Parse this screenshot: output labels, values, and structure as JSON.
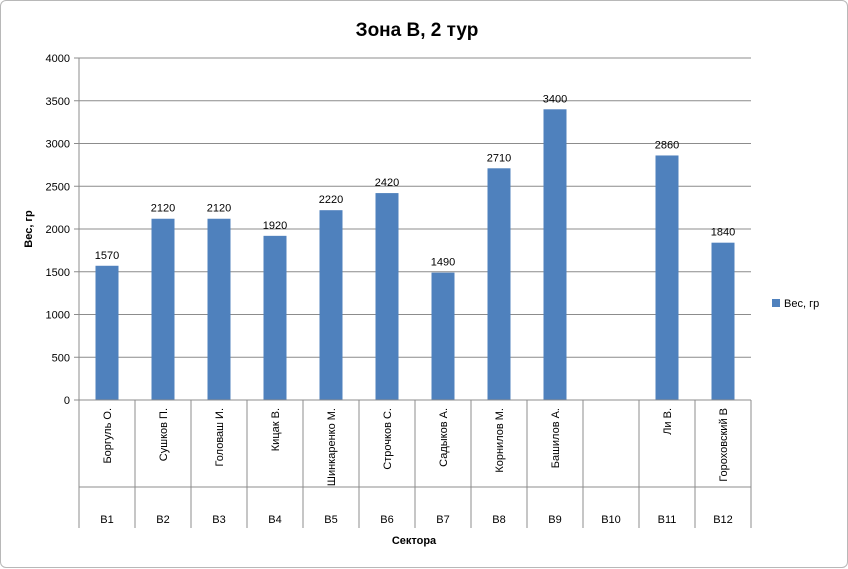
{
  "chart_data": {
    "type": "bar",
    "title": "Зона В, 2 тур",
    "ylabel": "Вес, гр",
    "xlabel": "Сектора",
    "ylim": [
      0,
      4000
    ],
    "yticks": [
      0,
      500,
      1000,
      1500,
      2000,
      2500,
      3000,
      3500,
      4000
    ],
    "grid": true,
    "legend_position": "right",
    "bar_color": "#4f81bd",
    "categories": [
      {
        "name": "Боргуль О.",
        "sector": "В1"
      },
      {
        "name": "Сушков П.",
        "sector": "В2"
      },
      {
        "name": "Головаш И.",
        "sector": "В3"
      },
      {
        "name": "Кицак В.",
        "sector": "В4"
      },
      {
        "name": "Шинкаренко М.",
        "sector": "В5"
      },
      {
        "name": "Строчков С.",
        "sector": "В6"
      },
      {
        "name": "Садыков А.",
        "sector": "В7"
      },
      {
        "name": "Корнилов М.",
        "sector": "В8"
      },
      {
        "name": "Башилов А.",
        "sector": "В9"
      },
      {
        "name": "",
        "sector": "В10"
      },
      {
        "name": "Ли В.",
        "sector": "В11"
      },
      {
        "name": "Гороховский В",
        "sector": "В12"
      }
    ],
    "series": [
      {
        "name": "Вес, гр",
        "values": [
          1570,
          2120,
          2120,
          1920,
          2220,
          2420,
          1490,
          2710,
          3400,
          null,
          2860,
          1840
        ]
      }
    ]
  }
}
